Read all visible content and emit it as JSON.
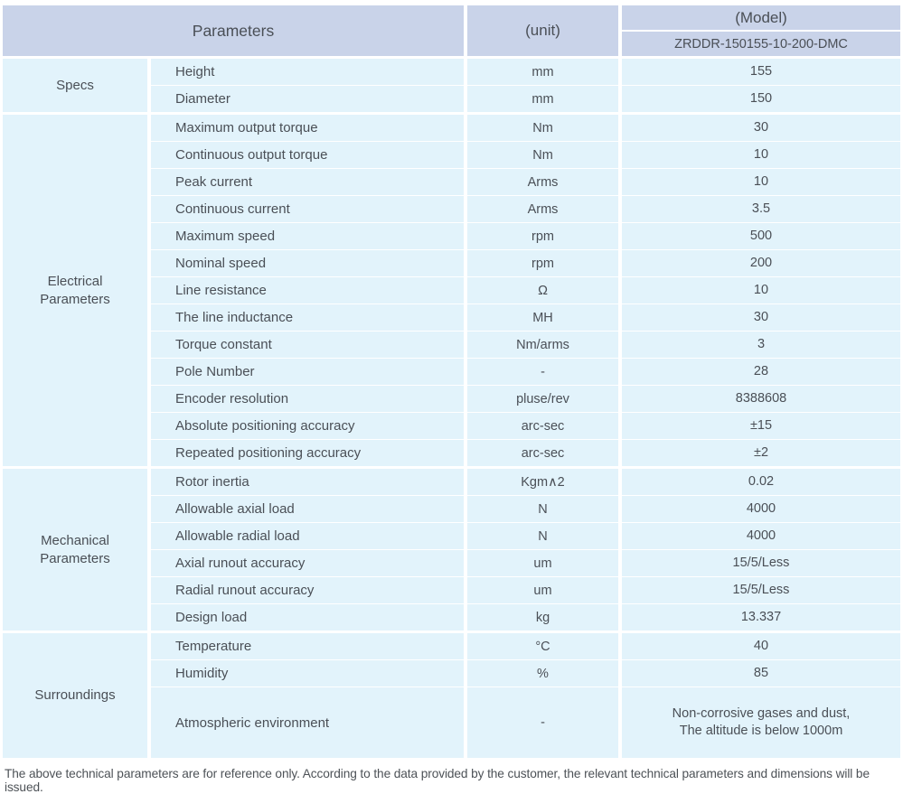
{
  "header": {
    "parameters_label": "Parameters",
    "unit_label": "(unit)",
    "model_label": "(Model)",
    "model_value": "ZRDDR-150155-10-200-DMC"
  },
  "sections": [
    {
      "label": "Specs",
      "rows": [
        {
          "param": "Height",
          "unit": "mm",
          "value": "155"
        },
        {
          "param": "Diameter",
          "unit": "mm",
          "value": "150"
        }
      ]
    },
    {
      "label": "Electrical\nParameters",
      "rows": [
        {
          "param": "Maximum output torque",
          "unit": "Nm",
          "value": "30"
        },
        {
          "param": "Continuous output torque",
          "unit": "Nm",
          "value": "10"
        },
        {
          "param": "Peak current",
          "unit": "Arms",
          "value": "10"
        },
        {
          "param": "Continuous current",
          "unit": "Arms",
          "value": "3.5"
        },
        {
          "param": "Maximum speed",
          "unit": "rpm",
          "value": "500"
        },
        {
          "param": "Nominal speed",
          "unit": "rpm",
          "value": "200"
        },
        {
          "param": "Line resistance",
          "unit": "Ω",
          "value": "10"
        },
        {
          "param": "The line inductance",
          "unit": "MH",
          "value": "30"
        },
        {
          "param": "Torque constant",
          "unit": "Nm/arms",
          "value": "3"
        },
        {
          "param": "Pole Number",
          "unit": "-",
          "value": "28"
        },
        {
          "param": "Encoder resolution",
          "unit": "pluse/rev",
          "value": "8388608"
        },
        {
          "param": "Absolute positioning accuracy",
          "unit": "arc-sec",
          "value": "±15"
        },
        {
          "param": "Repeated positioning accuracy",
          "unit": "arc-sec",
          "value": "±2"
        }
      ]
    },
    {
      "label": "Mechanical\nParameters",
      "rows": [
        {
          "param": "Rotor inertia",
          "unit": "Kgm∧2",
          "value": "0.02"
        },
        {
          "param": "Allowable axial load",
          "unit": "N",
          "value": "4000"
        },
        {
          "param": "Allowable radial load",
          "unit": "N",
          "value": "4000"
        },
        {
          "param": "Axial runout accuracy",
          "unit": "um",
          "value": "15/5/Less"
        },
        {
          "param": "Radial runout accuracy",
          "unit": "um",
          "value": "15/5/Less"
        },
        {
          "param": "Design load",
          "unit": "kg",
          "value": "13.337"
        }
      ]
    },
    {
      "label": "Surroundings",
      "rows": [
        {
          "param": "Temperature",
          "unit": "°C",
          "value": "40"
        },
        {
          "param": "Humidity",
          "unit": "%",
          "value": "85"
        },
        {
          "param": "Atmospheric environment",
          "unit": "-",
          "value": "Non-corrosive gases and dust,\nThe altitude is below 1000m"
        }
      ]
    }
  ],
  "footer": {
    "note": "The above technical parameters are for reference only. According to the data provided by the customer, the relevant technical parameters and dimensions will be issued."
  },
  "colors": {
    "header_bg": "#c9d3e9",
    "row_bg": "#e2f3fb",
    "divider": "#ffffff",
    "text": "#4a4f56"
  }
}
